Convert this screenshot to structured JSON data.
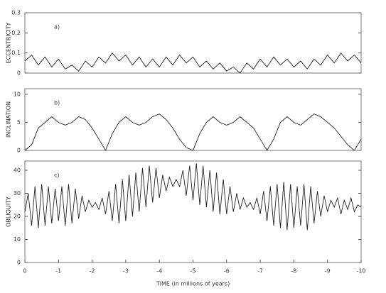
{
  "chart_data": [
    {
      "type": "line",
      "panel_label": "a)",
      "ylabel": "ECCENTRICITY",
      "color": "#222222",
      "xlim": [
        0,
        -10
      ],
      "ylim": [
        0,
        0.3
      ],
      "yticks": [
        0,
        0.1,
        0.2,
        0.3
      ],
      "x": [
        0,
        -0.2,
        -0.4,
        -0.6,
        -0.8,
        -1,
        -1.2,
        -1.4,
        -1.6,
        -1.8,
        -2,
        -2.2,
        -2.4,
        -2.6,
        -2.8,
        -3,
        -3.2,
        -3.4,
        -3.6,
        -3.8,
        -4,
        -4.2,
        -4.4,
        -4.6,
        -4.8,
        -5,
        -5.2,
        -5.4,
        -5.6,
        -5.8,
        -6,
        -6.2,
        -6.4,
        -6.6,
        -6.8,
        -7,
        -7.2,
        -7.4,
        -7.6,
        -7.8,
        -8,
        -8.2,
        -8.4,
        -8.6,
        -8.8,
        -9,
        -9.2,
        -9.4,
        -9.6,
        -9.8,
        -10
      ],
      "values": [
        0.06,
        0.09,
        0.04,
        0.08,
        0.03,
        0.07,
        0.02,
        0.04,
        0.01,
        0.06,
        0.03,
        0.08,
        0.05,
        0.1,
        0.06,
        0.09,
        0.04,
        0.08,
        0.03,
        0.07,
        0.03,
        0.08,
        0.04,
        0.09,
        0.05,
        0.08,
        0.03,
        0.06,
        0.02,
        0.05,
        0.01,
        0.03,
        0,
        0.05,
        0.02,
        0.07,
        0.03,
        0.08,
        0.04,
        0.07,
        0.03,
        0.06,
        0.02,
        0.07,
        0.04,
        0.09,
        0.05,
        0.1,
        0.06,
        0.09,
        0.05
      ]
    },
    {
      "type": "line",
      "panel_label": "b)",
      "ylabel": "INCLINATION",
      "color": "#222222",
      "xlim": [
        0,
        -10
      ],
      "ylim": [
        0,
        11
      ],
      "yticks": [
        0,
        5,
        10
      ],
      "x": [
        0,
        -0.2,
        -0.4,
        -0.6,
        -0.8,
        -1,
        -1.2,
        -1.4,
        -1.6,
        -1.8,
        -2,
        -2.2,
        -2.4,
        -2.6,
        -2.8,
        -3,
        -3.2,
        -3.4,
        -3.6,
        -3.8,
        -4,
        -4.2,
        -4.4,
        -4.6,
        -4.8,
        -5,
        -5.2,
        -5.4,
        -5.6,
        -5.8,
        -6,
        -6.2,
        -6.4,
        -6.6,
        -6.8,
        -7,
        -7.2,
        -7.4,
        -7.6,
        -7.8,
        -8,
        -8.2,
        -8.4,
        -8.6,
        -8.8,
        -9,
        -9.2,
        -9.4,
        -9.6,
        -9.8,
        -10
      ],
      "values": [
        0,
        1,
        4,
        5,
        6,
        5,
        4.5,
        5,
        6,
        5.5,
        4,
        2,
        0,
        3,
        5,
        6,
        5,
        4.5,
        5,
        6,
        6.5,
        5.5,
        4,
        2,
        0.5,
        0,
        3,
        5,
        6,
        5,
        4.5,
        5,
        6,
        5,
        4,
        2,
        0,
        2,
        5,
        6,
        5,
        4.5,
        5.5,
        6.5,
        6,
        5,
        4,
        2.5,
        1,
        0,
        2
      ]
    },
    {
      "type": "line",
      "panel_label": "c)",
      "ylabel": "OBLIQUITY",
      "xlabel": "TIME (in millions of years)",
      "color": "#222222",
      "xlim": [
        0,
        -10
      ],
      "xticks": [
        0,
        -1,
        -2,
        -3,
        -4,
        -5,
        -6,
        -7,
        -8,
        -9,
        -10
      ],
      "ylim": [
        0,
        44
      ],
      "yticks": [
        0,
        10,
        20,
        30,
        40
      ],
      "x": [
        0,
        -0.1,
        -0.2,
        -0.3,
        -0.4,
        -0.5,
        -0.6,
        -0.7,
        -0.8,
        -0.9,
        -1,
        -1.1,
        -1.2,
        -1.3,
        -1.4,
        -1.5,
        -1.6,
        -1.7,
        -1.8,
        -1.9,
        -2,
        -2.1,
        -2.2,
        -2.3,
        -2.4,
        -2.5,
        -2.6,
        -2.7,
        -2.8,
        -2.9,
        -3,
        -3.1,
        -3.2,
        -3.3,
        -3.4,
        -3.5,
        -3.6,
        -3.7,
        -3.8,
        -3.9,
        -4,
        -4.1,
        -4.2,
        -4.3,
        -4.4,
        -4.5,
        -4.6,
        -4.7,
        -4.8,
        -4.9,
        -5,
        -5.1,
        -5.2,
        -5.3,
        -5.4,
        -5.5,
        -5.6,
        -5.7,
        -5.8,
        -5.9,
        -6,
        -6.1,
        -6.2,
        -6.3,
        -6.4,
        -6.5,
        -6.6,
        -6.7,
        -6.8,
        -6.9,
        -7,
        -7.1,
        -7.2,
        -7.3,
        -7.4,
        -7.5,
        -7.6,
        -7.7,
        -7.8,
        -7.9,
        -8,
        -8.1,
        -8.2,
        -8.3,
        -8.4,
        -8.5,
        -8.6,
        -8.7,
        -8.8,
        -8.9,
        -9,
        -9.1,
        -9.2,
        -9.3,
        -9.4,
        -9.5,
        -9.6,
        -9.7,
        -9.8,
        -9.9,
        -10
      ],
      "values": [
        22,
        30,
        16,
        33,
        15,
        34,
        16,
        33,
        17,
        32,
        18,
        33,
        16,
        34,
        17,
        32,
        19,
        29,
        22,
        27,
        24,
        26,
        23,
        28,
        21,
        31,
        18,
        34,
        17,
        36,
        18,
        38,
        20,
        39,
        22,
        41,
        24,
        42,
        26,
        41,
        28,
        38,
        31,
        37,
        33,
        36,
        33,
        40,
        29,
        42,
        27,
        43,
        25,
        42,
        24,
        40,
        22,
        39,
        21,
        36,
        21,
        33,
        22,
        30,
        23,
        28,
        24,
        26,
        23,
        28,
        21,
        31,
        18,
        33,
        16,
        34,
        15,
        35,
        14,
        34,
        15,
        33,
        16,
        34,
        14,
        33,
        17,
        31,
        20,
        29,
        22,
        27,
        24,
        28,
        21,
        27,
        23,
        28,
        22,
        25,
        24
      ]
    }
  ]
}
